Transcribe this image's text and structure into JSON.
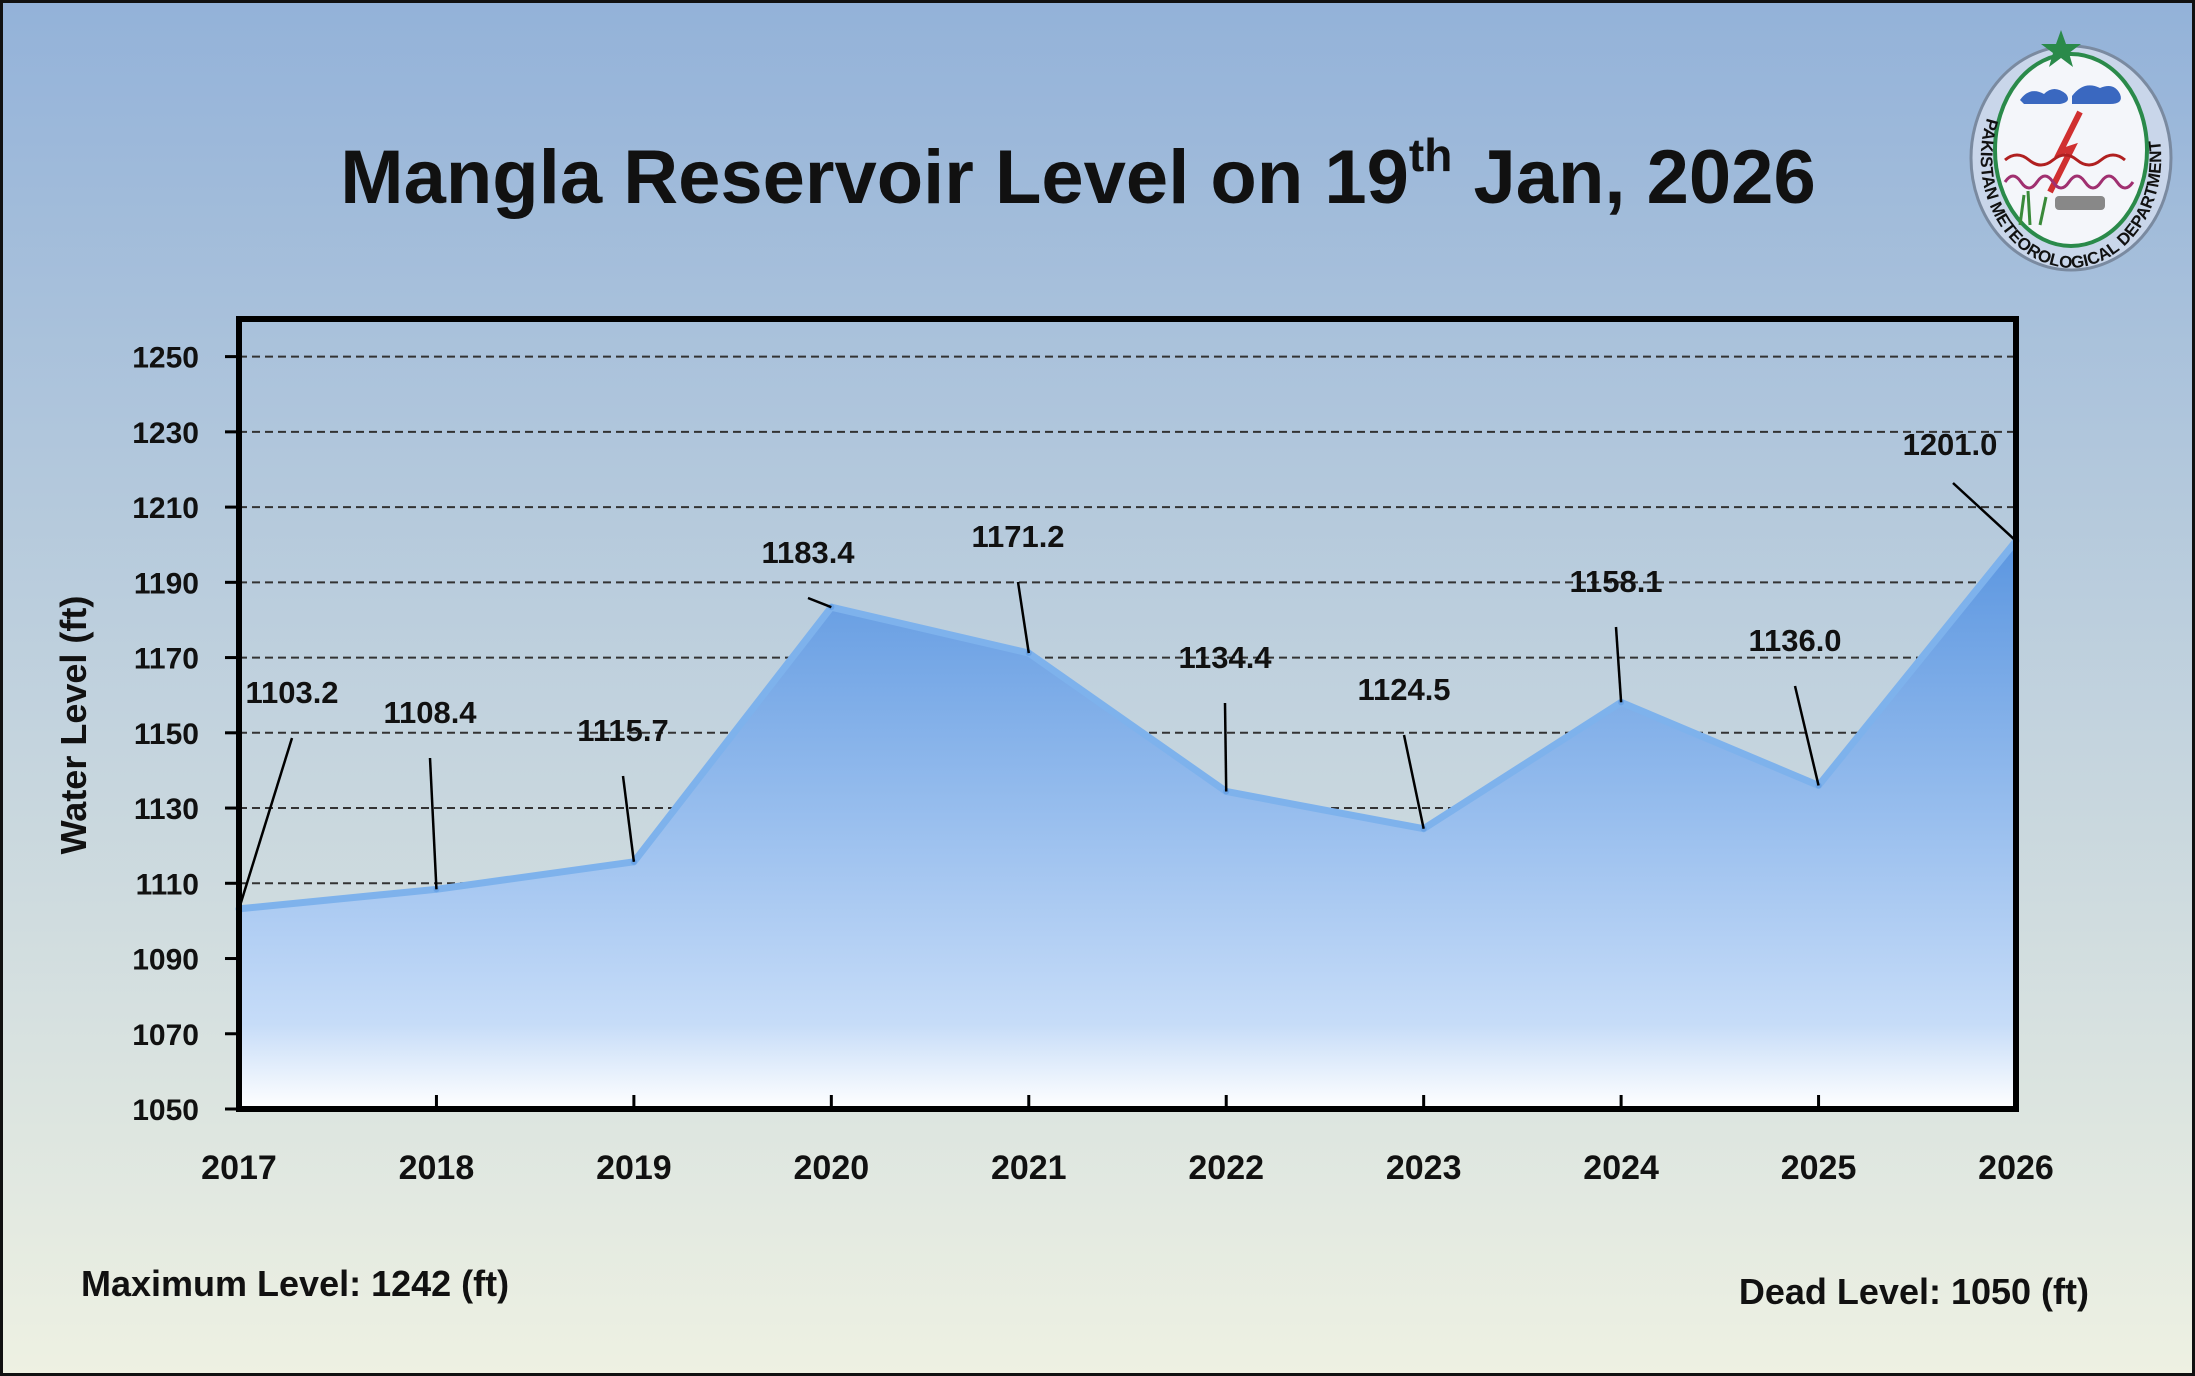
{
  "title": {
    "main": "Mangla Reservoir Level on 19",
    "sup": "th",
    "rest": " Jan, 2026"
  },
  "footer": {
    "max_level": "Maximum Level: 1242 (ft)",
    "dead_level": "Dead Level: 1050 (ft)"
  },
  "logo": {
    "text": "PAKISTAN METEOROLOGICAL DEPARTMENT",
    "icon": "pmd-logo-icon"
  },
  "colors": {
    "area_top": "#5b96e0",
    "area_bottom": "#eef5ff",
    "line": "#7eb2ec",
    "bg_top": "#93b2d9",
    "bg_bottom": "#eef1e2"
  },
  "chart_data": {
    "type": "area",
    "title": "Mangla Reservoir Level on 19th Jan, 2026",
    "xlabel": "",
    "ylabel": "Water Level (ft)",
    "categories": [
      "2017",
      "2018",
      "2019",
      "2020",
      "2021",
      "2022",
      "2023",
      "2024",
      "2025",
      "2026"
    ],
    "values": [
      1103.2,
      1108.4,
      1115.7,
      1183.4,
      1171.2,
      1134.4,
      1124.5,
      1158.1,
      1136.0,
      1201.0
    ],
    "data_labels": [
      "1103.2",
      "1108.4",
      "1115.7",
      "1183.4",
      "1171.2",
      "1134.4",
      "1124.5",
      "1158.1",
      "1136.0",
      "1201.0"
    ],
    "yticks": [
      "1050",
      "1070",
      "1090",
      "1110",
      "1130",
      "1150",
      "1170",
      "1190",
      "1210",
      "1230",
      "1250"
    ],
    "ylim": [
      1050,
      1260
    ],
    "grid": "horizontal dashed",
    "legend": "none"
  }
}
